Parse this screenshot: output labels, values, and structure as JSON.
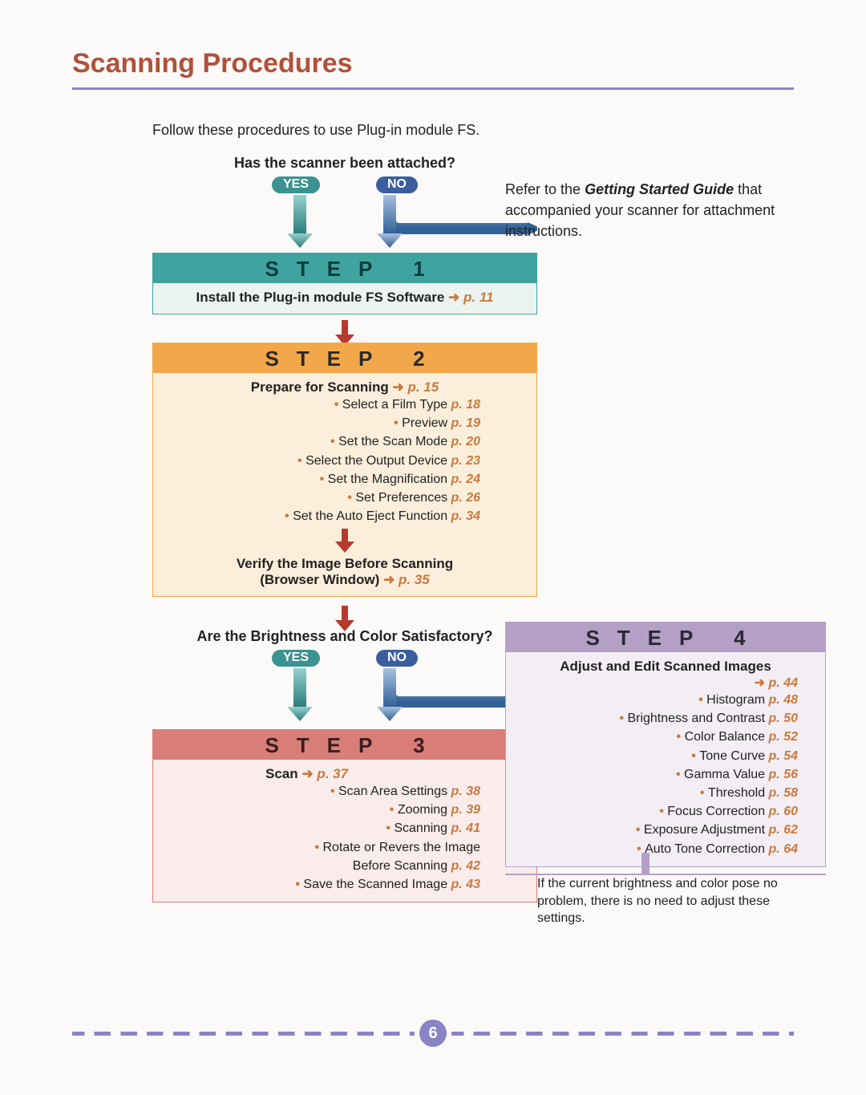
{
  "title": "Scanning Procedures",
  "intro": "Follow these procedures to use Plug-in module FS.",
  "page_number": "6",
  "colors": {
    "title": "#b1513b",
    "rule": "#8a84c4",
    "pref": "#c97a3e",
    "yes_pill_bg": "#3a9390",
    "no_pill_bg": "#3a5e9e",
    "step1_bar_bg": "#3fa3a0",
    "step1_bar_fg": "#0d3d3b",
    "step1_body_bg": "#ebf4f1",
    "step1_border": "#3fa3a0",
    "step2_bar_bg": "#f2a84a",
    "step2_bar_fg": "#2a2a2a",
    "step2_body_bg": "#fbeedb",
    "step2_border": "#f2a84a",
    "step3_bar_bg": "#d97d77",
    "step3_bar_fg": "#3a1d1d",
    "step3_body_bg": "#f9eceb",
    "step3_border": "#d97d77",
    "step4_bar_bg": "#b5a0c5",
    "step4_bar_fg": "#2a2838",
    "step4_body_bg": "#f3eef4",
    "step4_border": "#b5a0c5",
    "arrow_red": "#b83a2f",
    "arrow_teal_top": "#95d0cf",
    "arrow_teal_bottom": "#2c7d7b",
    "arrow_blue_top": "#a7c0de",
    "arrow_blue_bottom": "#326196"
  },
  "q1": {
    "text": "Has the scanner been attached?",
    "yes": "YES",
    "no": "NO"
  },
  "side_note1": {
    "prefix": "Refer to the ",
    "bold": "Getting Started Guide",
    "suffix": " that accompanied your scanner for attachment instructions."
  },
  "step1": {
    "bar": "STEP 1",
    "title": "Install the Plug-in module FS Software ",
    "pref": "p. 11"
  },
  "step2": {
    "bar": "STEP 2",
    "title": "Prepare for Scanning ",
    "title_pref": "p. 15",
    "items": [
      {
        "text": "Select a Film Type ",
        "pref": "p. 18"
      },
      {
        "text": "Preview ",
        "pref": "p. 19"
      },
      {
        "text": "Set the Scan Mode ",
        "pref": "p. 20"
      },
      {
        "text": "Select the Output Device ",
        "pref": "p. 23"
      },
      {
        "text": "Set the Magnification ",
        "pref": "p. 24"
      },
      {
        "text": "Set Preferences ",
        "pref": "p. 26"
      },
      {
        "text": "Set the Auto Eject Function ",
        "pref": "p. 34"
      }
    ],
    "verify_title1": "Verify the Image Before Scanning",
    "verify_title2": "(Browser Window) ",
    "verify_pref": "p. 35"
  },
  "q2": {
    "text": "Are the Brightness and Color Satisfactory?",
    "yes": "YES",
    "no": "NO"
  },
  "step3": {
    "bar": "STEP 3",
    "title": "Scan ",
    "title_pref": "p. 37",
    "items": [
      {
        "text": "Scan Area Settings ",
        "pref": "p. 38"
      },
      {
        "text": "Zooming ",
        "pref": "p. 39"
      },
      {
        "text": "Scanning ",
        "pref": "p. 41"
      },
      {
        "text": "Rotate or Revers the Image\nBefore Scanning ",
        "pref": "p. 42"
      },
      {
        "text": "Save the Scanned Image ",
        "pref": "p. 43"
      }
    ]
  },
  "step4": {
    "bar": "STEP 4",
    "title": "Adjust and Edit Scanned Images",
    "title_pref": "p. 44",
    "items": [
      {
        "text": "Histogram ",
        "pref": "p. 48"
      },
      {
        "text": "Brightness and Contrast ",
        "pref": "p. 50"
      },
      {
        "text": "Color Balance ",
        "pref": "p. 52"
      },
      {
        "text": "Tone Curve ",
        "pref": "p. 54"
      },
      {
        "text": "Gamma Value ",
        "pref": "p. 56"
      },
      {
        "text": "Threshold ",
        "pref": "p. 58"
      },
      {
        "text": "Focus Correction ",
        "pref": "p. 60"
      },
      {
        "text": "Exposure Adjustment ",
        "pref": "p. 62"
      },
      {
        "text": "Auto Tone Correction ",
        "pref": "p. 64"
      }
    ]
  },
  "footer_note": "If the current brightness and color pose no problem, there is no need to adjust these settings."
}
